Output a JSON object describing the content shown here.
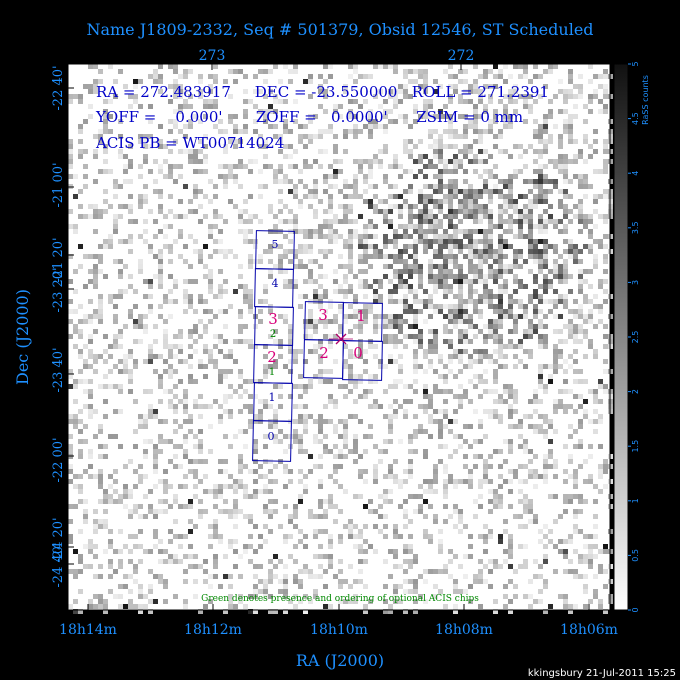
{
  "title": "Name J1809-2332, Seq # 501379, Obsid 12546, ST Scheduled",
  "header_lines": [
    "RA = 272.483917     DEC = -23.550000   ROLL = 271.2391",
    "YOFF =    0.000'       ZOFF =   0.0000'      ZSIM = 0 mm",
    "ACIS PB = WT00714024"
  ],
  "footer": "kkingsbury 21-Jul-2011 15:25",
  "note": "Green denotes presence and ordering of optional ACIS chips",
  "colors": {
    "background": "#000000",
    "axis_text": "#1e90ff",
    "header_text": "#0000c8",
    "chip_outline": "#0000aa",
    "chip_label_blue": "#0000aa",
    "chip_label_magenta": "#d8007a",
    "optional_green": "#008800",
    "aimpoint": "#b0006a"
  },
  "chart_data": {
    "type": "heatmap",
    "image": "RASS counts map",
    "xlabel": "RA (J2000)",
    "ylabel": "Dec (J2000)",
    "bottom_ticks": [
      "18h14m",
      "18h12m",
      "18h10m",
      "18h08m",
      "18h06m"
    ],
    "top_ticks": [
      "273",
      "272"
    ],
    "left_ticks": [
      "-22 40'",
      "-21 00'",
      "-21 20'",
      "-23 20'",
      "-23 40'",
      "-22 00'",
      "-24 20'",
      "-24 40'"
    ],
    "colorbar": {
      "label": "RaSS counts",
      "range": [
        0,
        5
      ],
      "ticks": [
        "5",
        "4.5",
        "4",
        "3.5",
        "3",
        "2.5",
        "2",
        "1.5",
        "1",
        "0.5",
        "0"
      ]
    },
    "aimpoint": {
      "ra": 272.483917,
      "dec": -23.55
    },
    "acis_s_chips": [
      "5",
      "4",
      "3",
      "2",
      "1",
      "0"
    ],
    "acis_s_optional": [
      "2",
      "1"
    ],
    "acis_i_chips": [
      "3",
      "1",
      "2",
      "0"
    ]
  }
}
